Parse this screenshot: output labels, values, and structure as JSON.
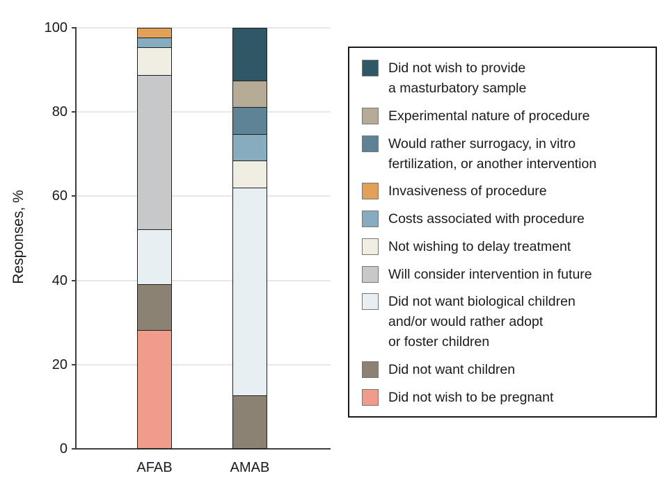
{
  "chart_data": {
    "type": "stacked-bar",
    "title": "",
    "ylabel": "Responses, %",
    "xlabel": "",
    "categories": [
      "AFAB",
      "AMAB"
    ],
    "ylim": [
      0,
      100
    ],
    "yticks": [
      0,
      20,
      40,
      60,
      80,
      100
    ],
    "grid": "horizontal",
    "legend_position": "right",
    "series_note": "series listed in stacking order, bottom to top; values are percent of responses per category",
    "series": [
      {
        "name": "Did not wish to be pregnant",
        "color": "#F19C8B",
        "values": [
          28.3,
          0
        ]
      },
      {
        "name": "Did not want children",
        "color": "#8B8274",
        "values": [
          10.9,
          12.5
        ]
      },
      {
        "name": "Did not want biological children and/or would rather adopt or foster children",
        "color": "#E8EFF3",
        "values": [
          13.0,
          50.0
        ]
      },
      {
        "name": "Will consider intervention in future",
        "color": "#C7C8CA",
        "values": [
          37.0,
          0
        ]
      },
      {
        "name": "Not wishing to delay treatment",
        "color": "#F0EEE3",
        "values": [
          6.5,
          6.3
        ]
      },
      {
        "name": "Costs associated with procedure",
        "color": "#88ACBF",
        "values": [
          2.2,
          6.3
        ]
      },
      {
        "name": "Invasiveness of procedure",
        "color": "#E2A159",
        "values": [
          2.2,
          0
        ]
      },
      {
        "name": "Would rather surrogacy, in vitro fertilization, or another intervention",
        "color": "#5E8396",
        "values": [
          0,
          6.3
        ]
      },
      {
        "name": "Experimental nature of procedure",
        "color": "#B5AB97",
        "values": [
          0,
          6.3
        ]
      },
      {
        "name": "Did not wish to provide a masturbatory sample",
        "color": "#2F5766",
        "values": [
          0,
          12.5
        ]
      }
    ]
  },
  "legend": {
    "items": [
      {
        "label": "Did not wish to provide\na masturbatory sample",
        "color": "#2F5766"
      },
      {
        "label": "Experimental nature of procedure",
        "color": "#B5AB97"
      },
      {
        "label": "Would rather surrogacy, in vitro\nfertilization, or another intervention",
        "color": "#5E8396"
      },
      {
        "label": "Invasiveness of procedure",
        "color": "#E2A159"
      },
      {
        "label": "Costs associated with procedure",
        "color": "#88ACBF"
      },
      {
        "label": "Not wishing to delay treatment",
        "color": "#F0EEE3"
      },
      {
        "label": "Will consider intervention in future",
        "color": "#C7C8CA"
      },
      {
        "label": "Did not want biological children\nand/or would rather adopt\nor foster children",
        "color": "#E8EFF3"
      },
      {
        "label": "Did not want children",
        "color": "#8B8274"
      },
      {
        "label": "Did not wish to be pregnant",
        "color": "#F19C8B"
      }
    ]
  }
}
